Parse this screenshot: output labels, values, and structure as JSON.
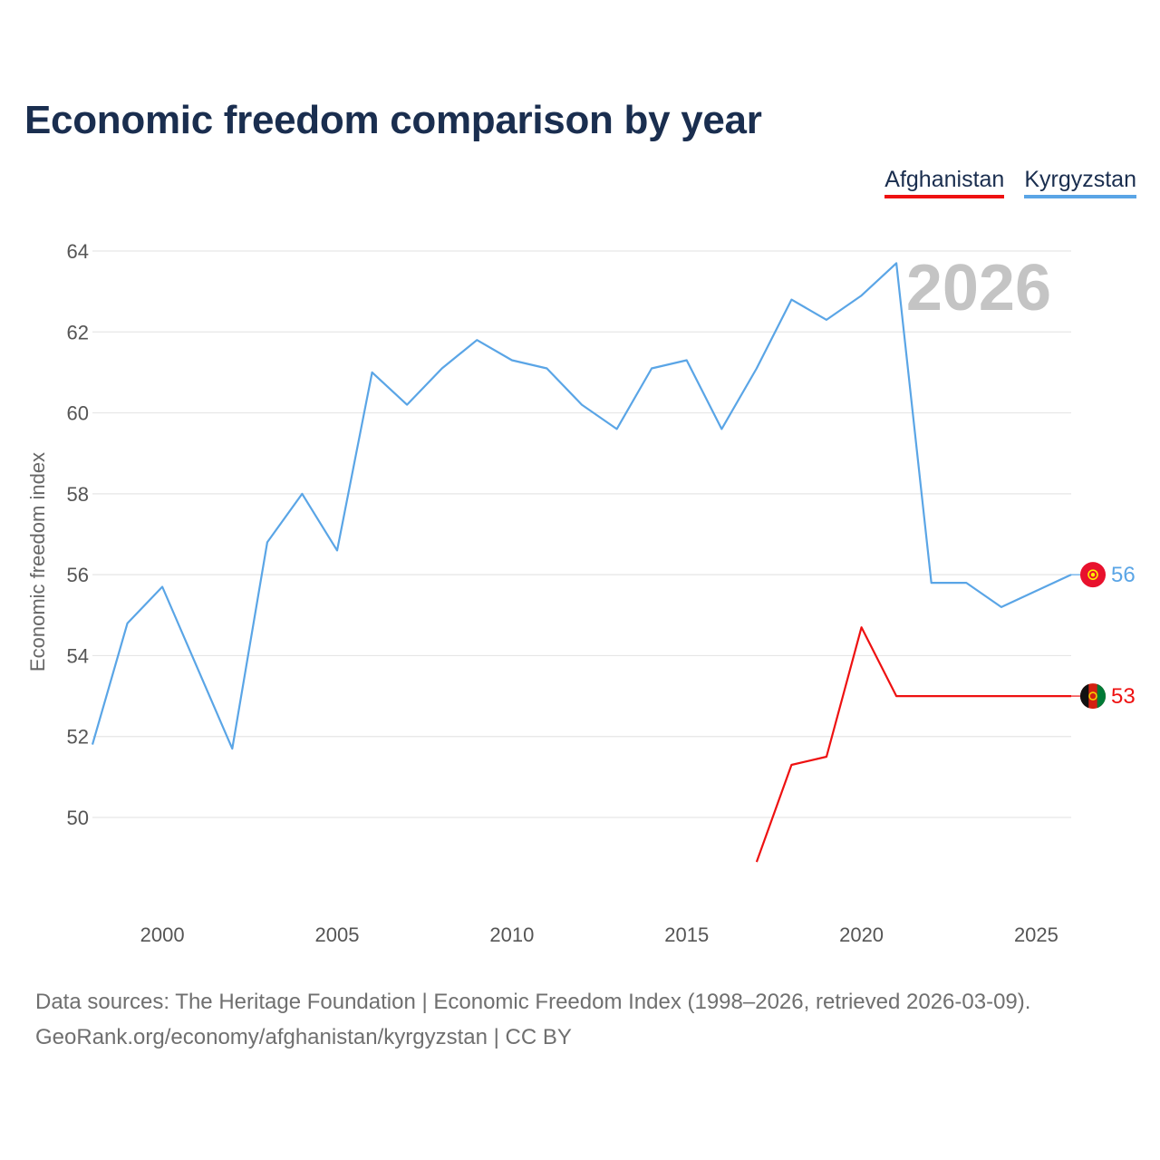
{
  "title": "Economic freedom comparison by year",
  "legend": [
    {
      "name": "Afghanistan",
      "color": "#ee1111"
    },
    {
      "name": "Kyrgyzstan",
      "color": "#5aa5e6"
    }
  ],
  "source": {
    "line1": "Data sources: The Heritage Foundation | Economic Freedom Index (1998–2026, retrieved 2026-03-09).",
    "line2": "GeoRank.org/economy/afghanistan/kyrgyzstan | CC BY"
  },
  "chart_data": {
    "type": "line",
    "title": "Economic freedom comparison by year",
    "xlabel": "",
    "ylabel": "Economic freedom index",
    "xlim": [
      1998,
      2026
    ],
    "ylim": [
      48,
      65.5
    ],
    "xticks": [
      2000,
      2005,
      2010,
      2015,
      2020,
      2025
    ],
    "yticks": [
      50,
      52,
      54,
      56,
      58,
      60,
      62,
      64
    ],
    "grid": true,
    "legend_position": "top-right",
    "year_marker": "2026",
    "series": [
      {
        "name": "Afghanistan",
        "color": "#ee1111",
        "end_label": "53",
        "x": [
          2017,
          2018,
          2019,
          2020,
          2021,
          2022,
          2023,
          2024,
          2025,
          2026
        ],
        "values": [
          48.9,
          51.3,
          51.5,
          54.7,
          53.0,
          53.0,
          53.0,
          53.0,
          53.0,
          53.0
        ]
      },
      {
        "name": "Kyrgyzstan",
        "color": "#5aa5e6",
        "end_label": "56",
        "x": [
          1998,
          1999,
          2000,
          2001,
          2002,
          2003,
          2004,
          2005,
          2006,
          2007,
          2008,
          2009,
          2010,
          2011,
          2012,
          2013,
          2014,
          2015,
          2016,
          2017,
          2018,
          2019,
          2020,
          2021,
          2022,
          2023,
          2024,
          2025,
          2026
        ],
        "values": [
          51.8,
          54.8,
          55.7,
          53.7,
          51.7,
          56.8,
          58.0,
          56.6,
          61.0,
          60.2,
          61.1,
          61.8,
          61.3,
          61.1,
          60.2,
          59.6,
          61.1,
          61.3,
          59.6,
          61.1,
          62.8,
          62.3,
          62.9,
          63.7,
          55.8,
          55.8,
          55.2,
          55.6,
          56.0
        ]
      }
    ]
  }
}
